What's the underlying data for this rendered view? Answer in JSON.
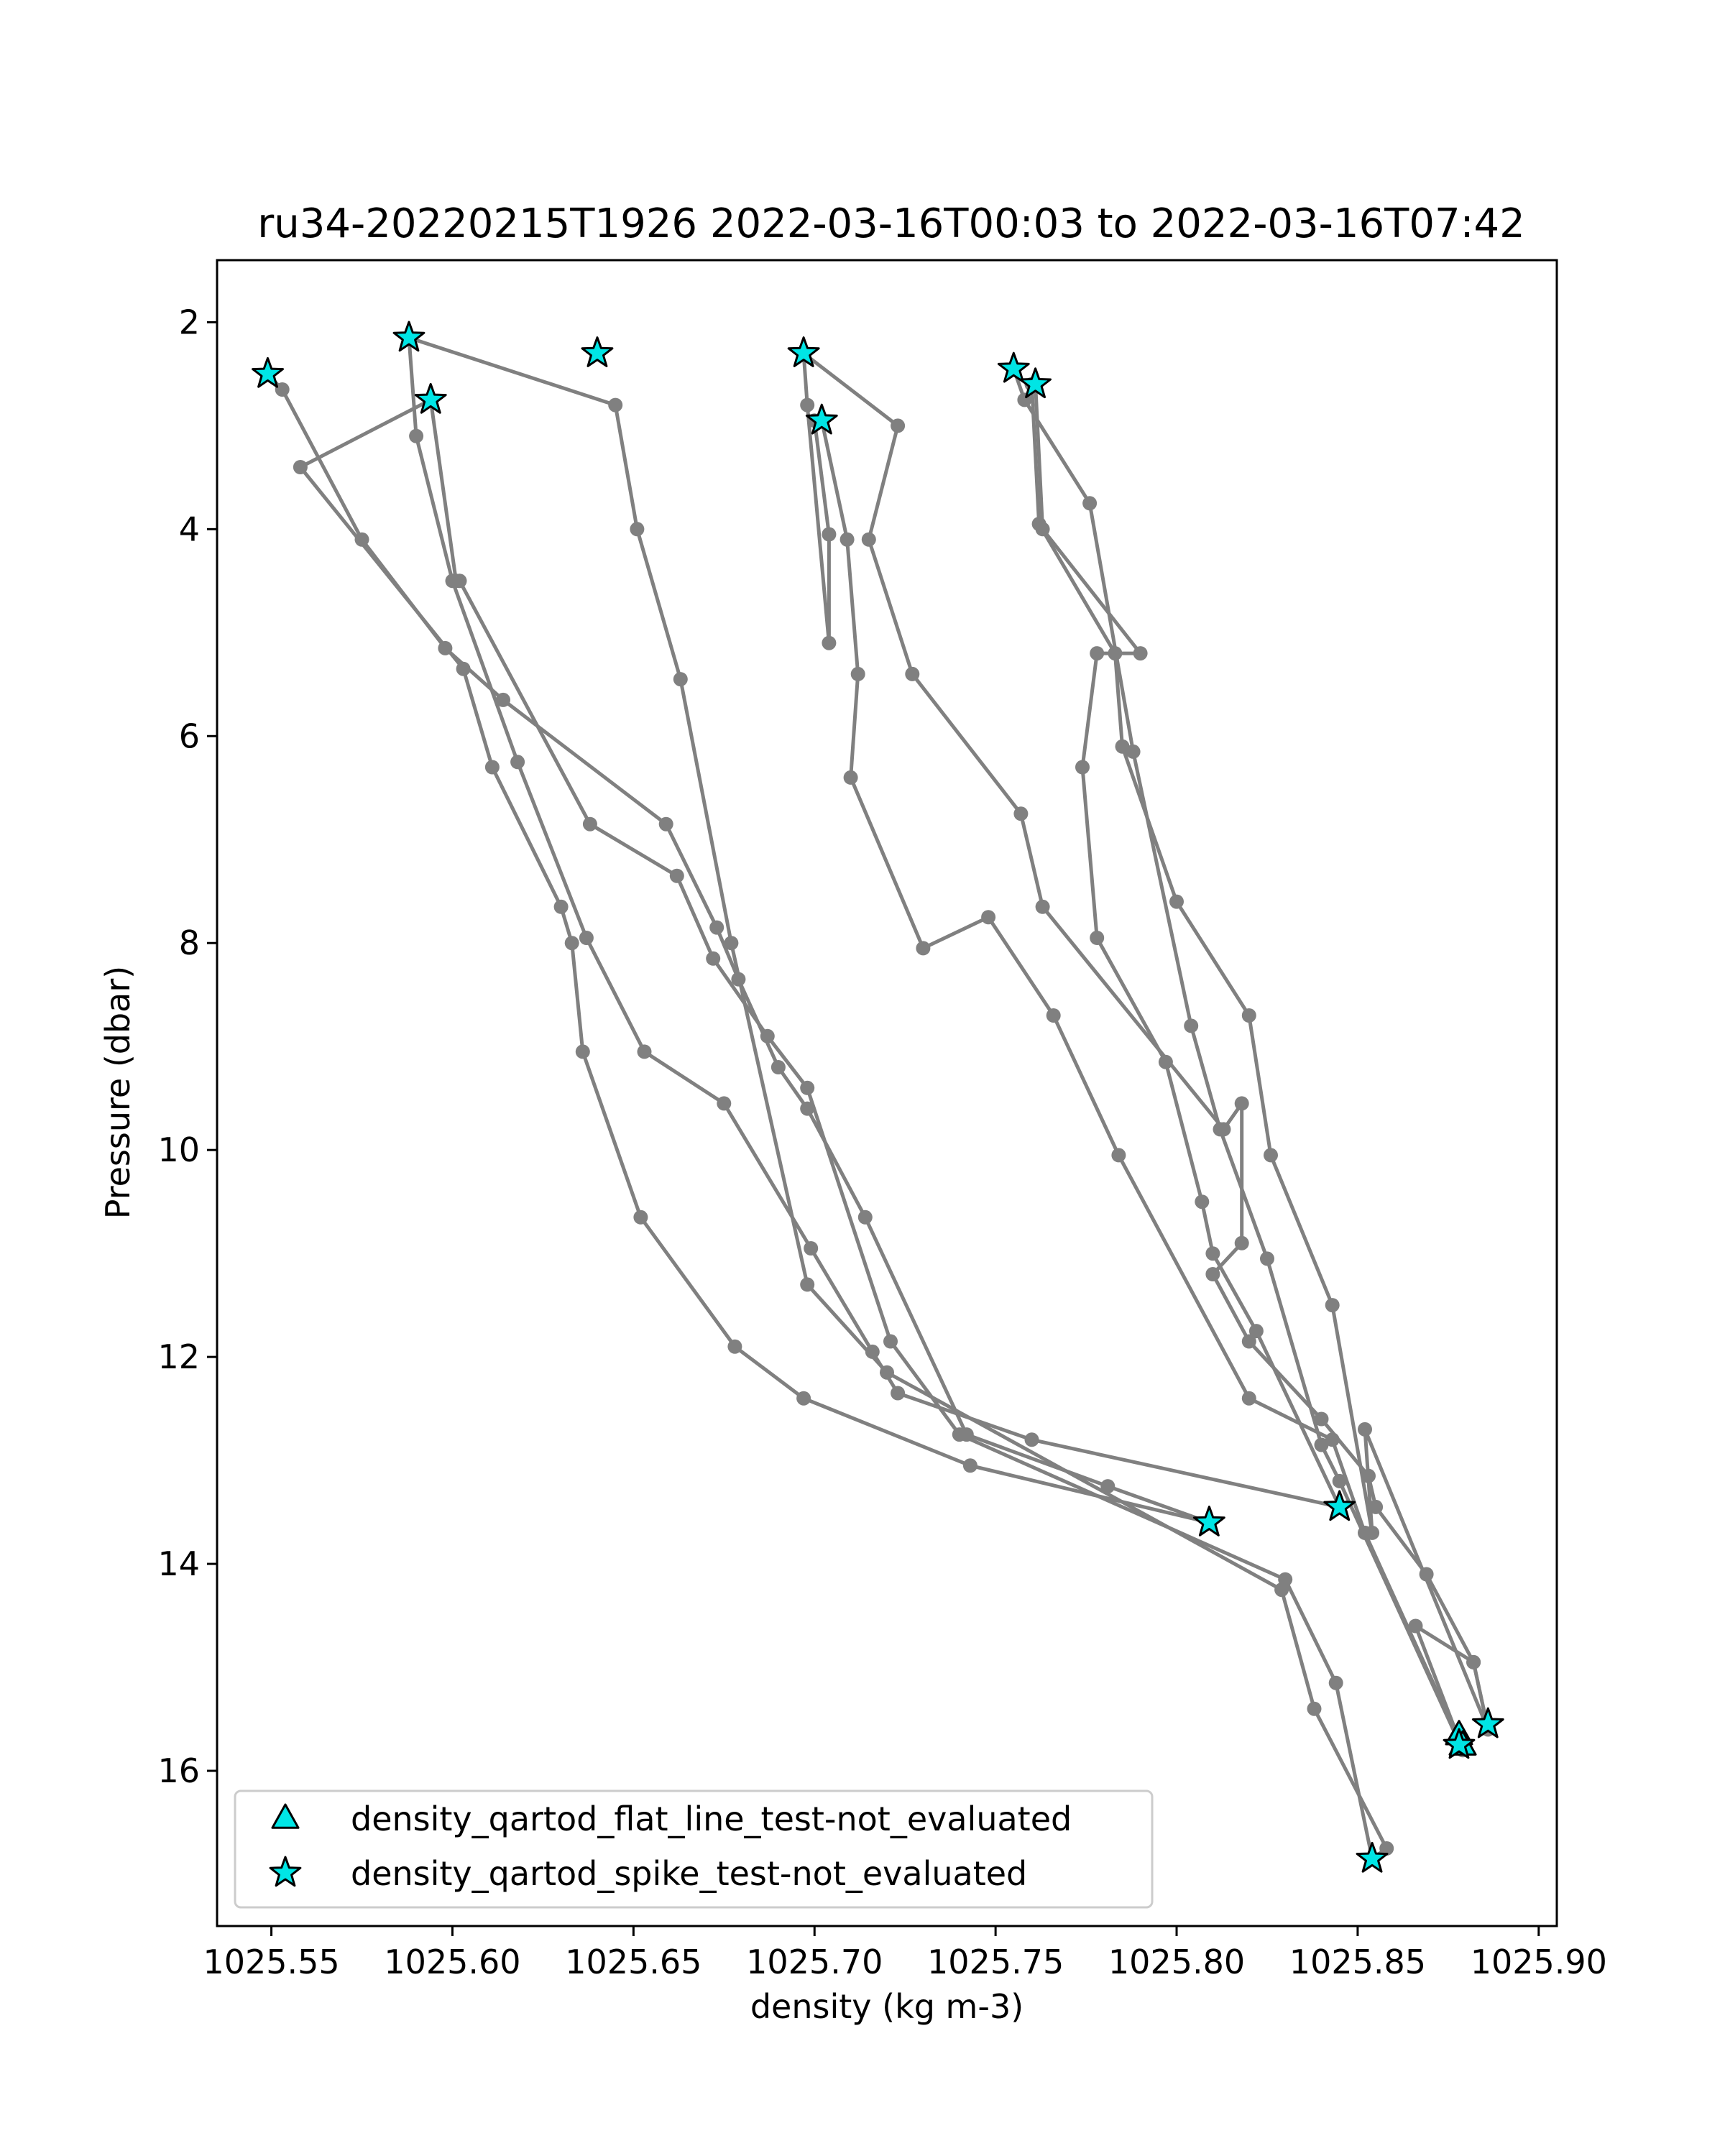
{
  "chart_data": {
    "type": "scatter",
    "title": "ru34-20220215T1926 2022-03-16T00:03 to 2022-03-16T07:42",
    "xlabel": "density (kg m-3)",
    "ylabel": "Pressure (dbar)",
    "xlim": [
      1025.535,
      1025.905
    ],
    "ylim": [
      17.5,
      1.4
    ],
    "y_inverted": true,
    "grid": false,
    "legend_position": "lower-left",
    "x_ticks": [
      1025.55,
      1025.6,
      1025.65,
      1025.7,
      1025.75,
      1025.8,
      1025.85,
      1025.9
    ],
    "x_tick_labels": [
      "1025.55",
      "1025.60",
      "1025.65",
      "1025.70",
      "1025.75",
      "1025.80",
      "1025.85",
      "1025.90"
    ],
    "y_ticks": [
      2,
      4,
      6,
      8,
      10,
      12,
      14,
      16
    ],
    "y_tick_labels": [
      "2",
      "4",
      "6",
      "8",
      "10",
      "12",
      "14",
      "16"
    ],
    "profile_color": "#808080",
    "marker_color": "#00e5e5",
    "profiles": [
      {
        "x": [
          1025.549,
          1025.553,
          1025.575,
          1025.598,
          1025.614,
          1025.659,
          1025.673,
          1025.679,
          1025.69,
          1025.698,
          1025.714,
          1025.742,
          1025.781,
          1025.809
        ],
        "y": [
          2.5,
          2.65,
          4.1,
          5.15,
          5.65,
          6.85,
          7.85,
          8.35,
          9.2,
          9.6,
          10.65,
          12.75,
          13.25,
          13.6
        ]
      },
      {
        "x": [
          1025.809,
          1025.743,
          1025.697,
          1025.678,
          1025.652,
          1025.636,
          1025.633,
          1025.63,
          1025.611,
          1025.603,
          1025.558,
          1025.594
        ],
        "y": [
          13.6,
          13.05,
          12.4,
          11.9,
          10.65,
          9.05,
          8.0,
          7.65,
          6.3,
          5.35,
          3.4,
          2.75
        ]
      },
      {
        "x": [
          1025.594,
          1025.601,
          1025.602,
          1025.638,
          1025.662,
          1025.672,
          1025.687,
          1025.698,
          1025.721,
          1025.74,
          1025.83,
          1025.844,
          1025.854
        ],
        "y": [
          2.75,
          4.5,
          4.5,
          6.85,
          7.35,
          8.15,
          8.9,
          9.4,
          11.85,
          12.75,
          14.15,
          15.15,
          16.85
        ]
      },
      {
        "x": [
          1025.854,
          1025.858,
          1025.838,
          1025.829,
          1025.72,
          1025.698,
          1025.677,
          1025.663,
          1025.651,
          1025.645,
          1025.588
        ],
        "y": [
          16.85,
          16.75,
          15.4,
          14.25,
          12.15,
          11.3,
          8.0,
          5.45,
          4.0,
          2.8,
          2.15
        ]
      },
      {
        "x": [
          1025.588,
          1025.59,
          1025.6,
          1025.618,
          1025.637,
          1025.653,
          1025.675,
          1025.699,
          1025.716,
          1025.723,
          1025.76,
          1025.845
        ],
        "y": [
          2.15,
          3.1,
          4.5,
          6.25,
          7.95,
          9.05,
          9.55,
          10.95,
          11.95,
          12.35,
          12.8,
          13.45
        ]
      },
      {
        "x": [
          1025.845,
          1025.822,
          1025.81,
          1025.807,
          1025.797,
          1025.778,
          1025.774,
          1025.778,
          1025.79,
          1025.763,
          1025.761
        ],
        "y": [
          13.45,
          11.75,
          11.0,
          10.5,
          9.15,
          7.95,
          6.3,
          5.2,
          5.2,
          4.0,
          2.6
        ]
      },
      {
        "x": [
          1025.761,
          1025.76,
          1025.762,
          1025.783,
          1025.785,
          1025.8,
          1025.82,
          1025.826,
          1025.843,
          1025.854,
          1025.852,
          1025.886,
          1025.882,
          1025.866,
          1025.878
        ],
        "y": [
          2.6,
          2.6,
          3.95,
          5.2,
          6.1,
          7.6,
          8.7,
          10.05,
          11.5,
          13.7,
          12.7,
          15.6,
          14.95,
          14.6,
          15.7
        ]
      },
      {
        "x": [
          1025.878,
          1025.852,
          1025.843,
          1025.82,
          1025.784,
          1025.766,
          1025.748,
          1025.73,
          1025.71,
          1025.712,
          1025.709,
          1025.702
        ],
        "y": [
          15.7,
          13.7,
          12.8,
          12.4,
          10.05,
          8.7,
          7.75,
          8.05,
          6.4,
          5.4,
          4.1,
          2.95
        ]
      },
      {
        "x": [
          1025.702,
          1025.7,
          1025.704,
          1025.704,
          1025.698,
          1025.697
        ],
        "y": [
          2.95,
          2.95,
          4.05,
          5.1,
          2.8,
          2.3
        ]
      },
      {
        "x": [
          1025.697,
          1025.697,
          1025.723,
          1025.715,
          1025.727,
          1025.757,
          1025.763,
          1025.813,
          1025.818,
          1025.818,
          1025.81,
          1025.82,
          1025.84,
          1025.853,
          1025.855,
          1025.869,
          1025.882,
          1025.886
        ],
        "y": [
          2.3,
          2.3,
          3.0,
          4.1,
          5.4,
          6.75,
          7.65,
          9.8,
          9.55,
          10.9,
          11.2,
          11.85,
          12.6,
          13.15,
          13.45,
          14.1,
          14.95,
          15.6
        ]
      },
      {
        "x": [
          1025.755,
          1025.758,
          1025.776,
          1025.788,
          1025.804,
          1025.812,
          1025.825,
          1025.84,
          1025.845,
          1025.879
        ],
        "y": [
          2.45,
          2.75,
          3.75,
          6.15,
          8.8,
          9.8,
          11.05,
          12.85,
          13.2,
          15.8
        ]
      }
    ],
    "series": [
      {
        "name": "density_qartod_flat_line_test-not_evaluated",
        "marker": "triangle",
        "x": [
          1025.878,
          1025.879
        ],
        "y": [
          15.65,
          15.75
        ]
      },
      {
        "name": "density_qartod_spike_test-not_evaluated",
        "marker": "star",
        "x": [
          1025.549,
          1025.588,
          1025.594,
          1025.64,
          1025.697,
          1025.702,
          1025.755,
          1025.761,
          1025.809,
          1025.845,
          1025.854,
          1025.878,
          1025.886
        ],
        "y": [
          2.5,
          2.15,
          2.75,
          2.3,
          2.3,
          2.95,
          2.45,
          2.6,
          13.6,
          13.45,
          16.85,
          15.75,
          15.55
        ]
      }
    ]
  }
}
